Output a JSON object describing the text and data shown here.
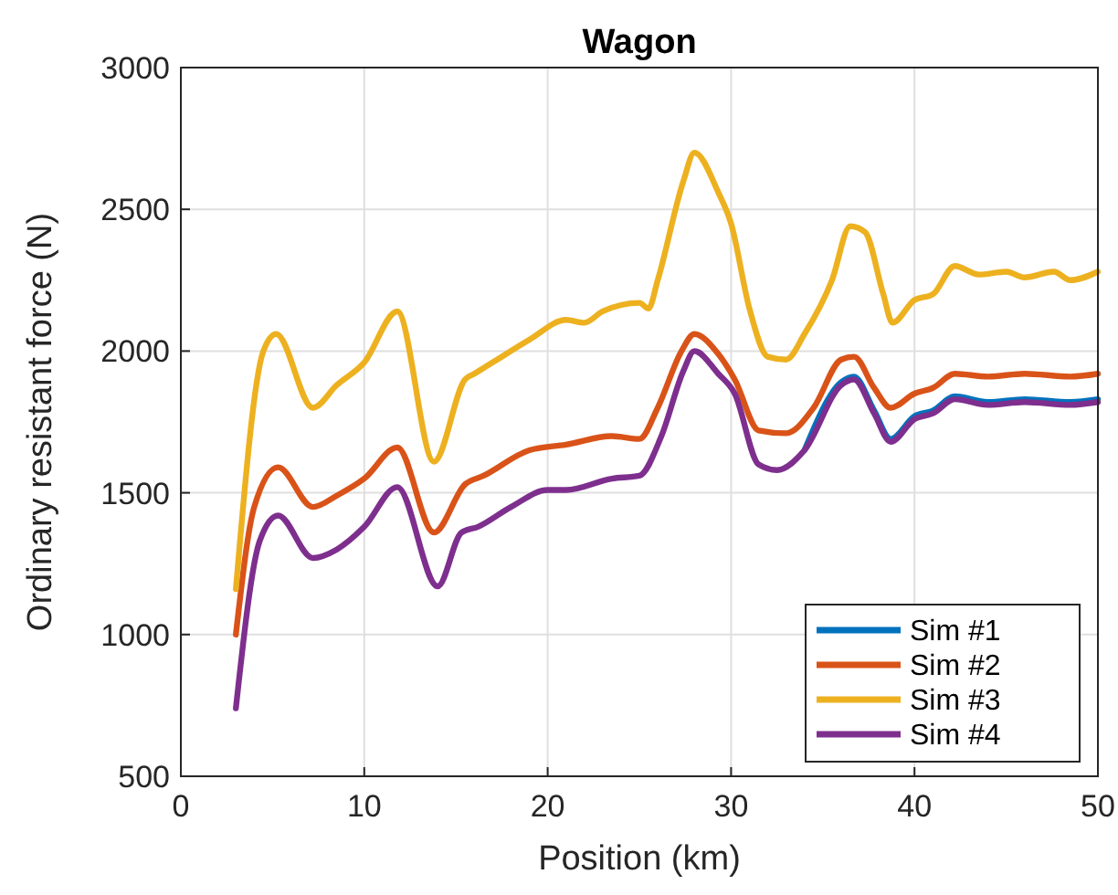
{
  "chart_data": {
    "type": "line",
    "title": "Wagon",
    "xlabel": "Position (km)",
    "ylabel": "Ordinary resistant force (N)",
    "xlim": [
      0,
      50
    ],
    "xticks": [
      0,
      10,
      20,
      30,
      40,
      50
    ],
    "ylim": [
      500,
      3000
    ],
    "yticks": [
      500,
      1000,
      1500,
      2000,
      2500,
      3000
    ],
    "grid": true,
    "legend": "bottom right",
    "line_style": "solid",
    "marker": "none",
    "series": [
      {
        "name": "Sim #1",
        "color": "#0072bd",
        "x": [
          34,
          36,
          36.7,
          37.8,
          38.7,
          40,
          41,
          42.2,
          44,
          46,
          48.5,
          50
        ],
        "values": [
          1650,
          1890,
          1910,
          1790,
          1690,
          1770,
          1790,
          1840,
          1820,
          1830,
          1820,
          1830
        ]
      },
      {
        "name": "Sim #2",
        "color": "#d95319",
        "x": [
          3,
          4,
          5.3,
          7.2,
          8.5,
          10,
          11.8,
          13.8,
          15.5,
          16.5,
          19,
          21,
          23.5,
          25,
          26,
          27.3,
          28,
          29.3,
          30.2,
          31.5,
          33,
          34.5,
          36,
          36.7,
          37.8,
          38.7,
          40,
          41,
          42.2,
          44,
          46,
          48.5,
          50
        ],
        "values": [
          1000,
          1450,
          1590,
          1450,
          1490,
          1550,
          1660,
          1360,
          1530,
          1560,
          1650,
          1670,
          1700,
          1690,
          1800,
          2000,
          2060,
          1990,
          1900,
          1720,
          1710,
          1800,
          1970,
          1980,
          1870,
          1800,
          1850,
          1870,
          1920,
          1910,
          1920,
          1910,
          1920
        ]
      },
      {
        "name": "Sim #3",
        "color": "#edb120",
        "x": [
          3,
          4.5,
          5.2,
          7.2,
          8.5,
          10,
          11.8,
          13.8,
          15.5,
          16,
          17,
          19,
          21,
          22,
          23,
          25,
          25.5,
          26,
          27.4,
          28,
          29.3,
          30,
          31,
          32,
          33,
          34,
          35.5,
          36.5,
          37.3,
          38.3,
          38.8,
          40,
          41,
          42.2,
          43.5,
          45,
          46,
          47.6,
          48.5,
          50
        ],
        "values": [
          1160,
          2000,
          2060,
          1800,
          1880,
          1960,
          2140,
          1610,
          1900,
          1920,
          1960,
          2040,
          2110,
          2100,
          2140,
          2170,
          2150,
          2250,
          2600,
          2700,
          2560,
          2450,
          2150,
          1980,
          1970,
          2060,
          2250,
          2440,
          2420,
          2200,
          2100,
          2180,
          2200,
          2300,
          2270,
          2280,
          2260,
          2280,
          2250,
          2280
        ]
      },
      {
        "name": "Sim #4",
        "color": "#7e2f8e",
        "x": [
          3,
          4.3,
          5.3,
          7.2,
          8.5,
          10,
          11.8,
          14,
          15.3,
          16.2,
          18,
          20,
          21,
          23.5,
          25,
          26.2,
          27.4,
          28,
          29.3,
          30.2,
          31.5,
          32.5,
          34,
          36,
          36.7,
          37.8,
          38.7,
          40,
          41,
          42.2,
          44,
          46,
          48.5,
          50
        ],
        "values": [
          740,
          1330,
          1420,
          1270,
          1300,
          1380,
          1520,
          1170,
          1360,
          1380,
          1450,
          1510,
          1510,
          1550,
          1560,
          1700,
          1930,
          2000,
          1920,
          1850,
          1600,
          1580,
          1650,
          1880,
          1900,
          1780,
          1680,
          1760,
          1780,
          1830,
          1810,
          1820,
          1810,
          1820
        ]
      }
    ]
  }
}
